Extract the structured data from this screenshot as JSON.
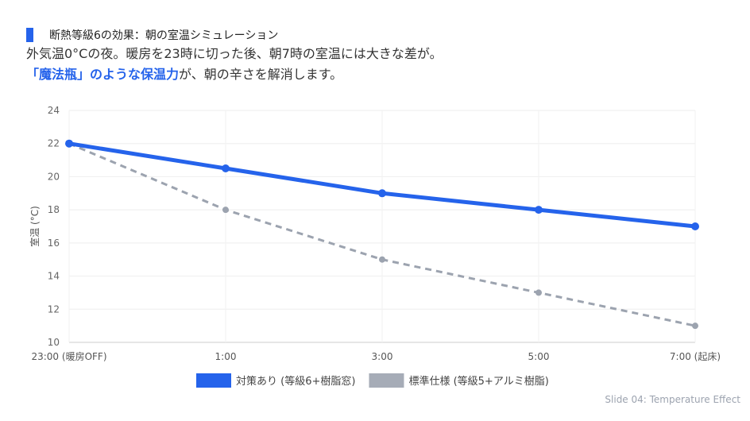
{
  "header": {
    "title": "断熱等級6の効果：朝の室温シミュレーション",
    "line1": "外気温0°Cの夜。暖房を23時に切った後、朝7時の室温には大きな差が。",
    "line2_highlight": "「魔法瓶」のような保温力",
    "line2_rest": "が、朝の辛さを解消します。"
  },
  "footer": "Slide 04: Temperature Effect",
  "chart_data": {
    "type": "line",
    "categories": [
      "23:00 (暖房OFF)",
      "1:00",
      "3:00",
      "5:00",
      "7:00 (起床)"
    ],
    "ylabel": "室温 (°C)",
    "ylim": [
      10,
      24
    ],
    "yticks": [
      10,
      12,
      14,
      16,
      18,
      20,
      22,
      24
    ],
    "grid": true,
    "legend_position": "bottom",
    "series": [
      {
        "name": "対策あり (等級6+樹脂窓)",
        "values": [
          22,
          20.5,
          19,
          18,
          17
        ],
        "color": "#2563eb",
        "dashed": false
      },
      {
        "name": "標準仕様 (等級5+アルミ樹脂)",
        "values": [
          22,
          18,
          15,
          13,
          11
        ],
        "color": "#9ca3af",
        "dashed": true
      }
    ]
  }
}
